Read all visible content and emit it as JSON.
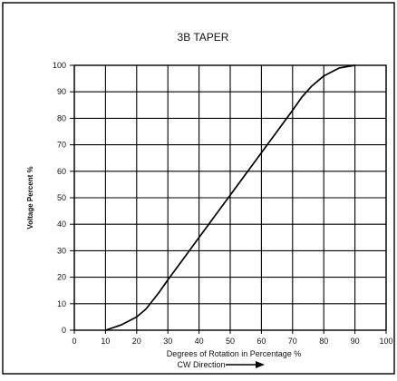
{
  "chart_data": {
    "type": "line",
    "title": "3B TAPER",
    "xlabel": "Degrees of Rotation in Percentage %",
    "xlabel_line2": "CW Direction",
    "ylabel": "Voltage Percent %",
    "xlim": [
      0,
      100
    ],
    "ylim": [
      0,
      100
    ],
    "x_ticks": [
      "0",
      "10",
      "20",
      "30",
      "40",
      "50",
      "60",
      "70",
      "80",
      "90",
      "100"
    ],
    "y_ticks": [
      "0",
      "10",
      "20",
      "30",
      "40",
      "50",
      "60",
      "70",
      "80",
      "90",
      "100"
    ],
    "grid": true,
    "series": [
      {
        "x": [
          10,
          15,
          20,
          23,
          25,
          27,
          30,
          35,
          40,
          45,
          50,
          55,
          60,
          65,
          70,
          73,
          76,
          80,
          85,
          90
        ],
        "y": [
          0,
          2,
          5,
          8,
          11,
          14,
          19,
          27,
          35,
          43,
          51,
          59,
          67,
          75,
          83,
          88,
          92,
          96,
          99,
          100
        ],
        "color": "#000000"
      }
    ]
  }
}
